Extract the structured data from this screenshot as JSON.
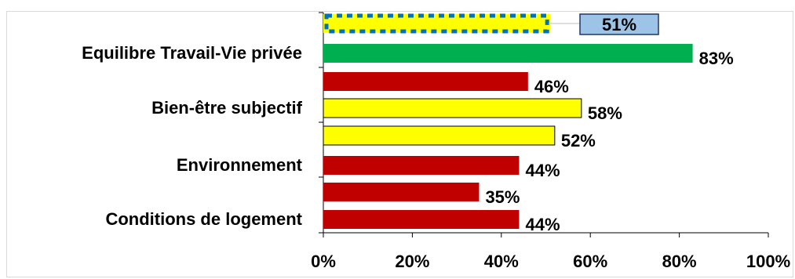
{
  "chart_data": {
    "type": "bar",
    "orientation": "horizontal",
    "bars": [
      {
        "value": 51,
        "label": "51%",
        "color": "#ffff00",
        "highlight": true,
        "callout": true
      },
      {
        "value": 83,
        "label": "83%",
        "color": "#00b050",
        "category": "Equilibre Travail-Vie privée"
      },
      {
        "value": 46,
        "label": "46%",
        "color": "#c00000"
      },
      {
        "value": 58,
        "label": "58%",
        "color": "#ffff00",
        "category": "Bien-être subjectif"
      },
      {
        "value": 52,
        "label": "52%",
        "color": "#ffff00"
      },
      {
        "value": 44,
        "label": "44%",
        "color": "#c00000",
        "category": "Environnement"
      },
      {
        "value": 35,
        "label": "35%",
        "color": "#c00000"
      },
      {
        "value": 44,
        "label": "44%",
        "color": "#c00000",
        "category": "Conditions de logement"
      }
    ],
    "xticks": [
      "0%",
      "20%",
      "40%",
      "60%",
      "80%",
      "100%"
    ],
    "xlim": [
      0,
      100
    ],
    "grid": false,
    "colors": {
      "highlight_border": "#0070c0",
      "callout_fill": "#9dc3e6",
      "callout_border": "#1f3864"
    }
  }
}
